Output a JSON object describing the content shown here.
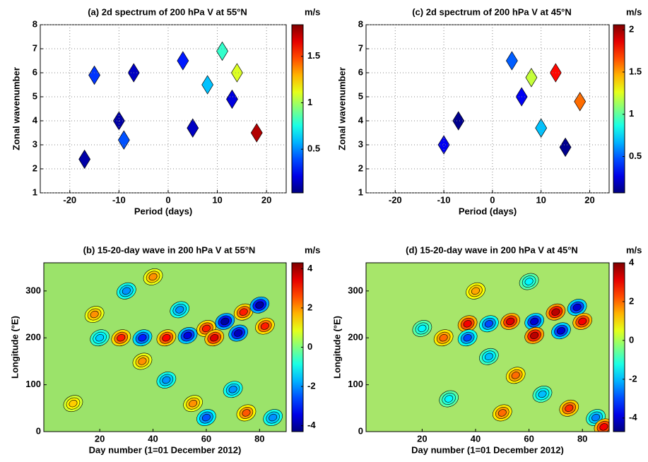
{
  "chart_data": [
    {
      "type": "contour",
      "title": "(a) 2d spectrum of 200 hPa V at 55°N",
      "xlabel": "Period (days)",
      "ylabel": "Zonal wavenumber",
      "colorbar_label": "m/s",
      "xlim": [
        -26,
        24
      ],
      "xticks": [
        -20,
        -10,
        0,
        10,
        20
      ],
      "ylim": [
        1,
        8
      ],
      "yticks": [
        1,
        2,
        3,
        4,
        5,
        6,
        7,
        8
      ],
      "grid": true,
      "clim": [
        0.03,
        1.84
      ],
      "cticks": [
        0.5,
        1,
        1.5
      ],
      "background": "#ffffff",
      "features": [
        {
          "x": -17,
          "y": 2.4,
          "value": 0.1
        },
        {
          "x": -9,
          "y": 3.2,
          "value": 0.4
        },
        {
          "x": -10,
          "y": 4,
          "value": 0.1
        },
        {
          "x": -15,
          "y": 5.9,
          "value": 0.35
        },
        {
          "x": -7,
          "y": 6,
          "value": 0.15
        },
        {
          "x": 18,
          "y": 3.5,
          "value": 1.75
        },
        {
          "x": 13,
          "y": 4.9,
          "value": 0.2
        },
        {
          "x": 14,
          "y": 6,
          "value": 1.1
        },
        {
          "x": 8,
          "y": 5.5,
          "value": 0.6
        },
        {
          "x": 5,
          "y": 3.7,
          "value": 0.15
        },
        {
          "x": 11,
          "y": 6.9,
          "value": 0.8
        },
        {
          "x": 3,
          "y": 6.5,
          "value": 0.3
        }
      ]
    },
    {
      "type": "contour",
      "title": "(b) 15-20-day wave in 200 hPa V at 55°N",
      "xlabel": "Day number (1=01 December 2012)",
      "ylabel": "Longitude (°E)",
      "colorbar_label": "m/s",
      "xlim": [
        -1,
        90
      ],
      "xticks": [
        20,
        40,
        60,
        80
      ],
      "ylim": [
        0,
        360
      ],
      "yticks": [
        0,
        100,
        200,
        300
      ],
      "grid": false,
      "clim": [
        -4.3,
        4.3
      ],
      "cticks": [
        -4,
        -2,
        0,
        2,
        4
      ],
      "background": "#9be36a",
      "features": [
        {
          "x": 28,
          "y": 200,
          "value": 3
        },
        {
          "x": 36,
          "y": 200,
          "value": -3
        },
        {
          "x": 45,
          "y": 200,
          "value": 3.2
        },
        {
          "x": 53,
          "y": 205,
          "value": -3.5
        },
        {
          "x": 60,
          "y": 220,
          "value": 3
        },
        {
          "x": 67,
          "y": 235,
          "value": -4
        },
        {
          "x": 74,
          "y": 255,
          "value": 3
        },
        {
          "x": 80,
          "y": 270,
          "value": -4
        },
        {
          "x": 63,
          "y": 200,
          "value": 3.5
        },
        {
          "x": 72,
          "y": 210,
          "value": -3.8
        },
        {
          "x": 82,
          "y": 225,
          "value": 3
        },
        {
          "x": 20,
          "y": 200,
          "value": -1.5
        },
        {
          "x": 36,
          "y": 150,
          "value": 2
        },
        {
          "x": 45,
          "y": 110,
          "value": -2
        },
        {
          "x": 55,
          "y": 60,
          "value": 2
        },
        {
          "x": 60,
          "y": 30,
          "value": -2.5
        },
        {
          "x": 75,
          "y": 40,
          "value": 2.5
        },
        {
          "x": 85,
          "y": 30,
          "value": -2
        },
        {
          "x": 30,
          "y": 300,
          "value": -2
        },
        {
          "x": 40,
          "y": 330,
          "value": 2
        },
        {
          "x": 18,
          "y": 250,
          "value": 2
        },
        {
          "x": 50,
          "y": 260,
          "value": -2
        },
        {
          "x": 70,
          "y": 90,
          "value": -2
        },
        {
          "x": 10,
          "y": 60,
          "value": 1.5
        }
      ]
    },
    {
      "type": "contour",
      "title": "(c) 2d spectrum of 200 hPa V at 45°N",
      "xlabel": "Period (days)",
      "ylabel": "Zonal wavenumber",
      "colorbar_label": "m/s",
      "xlim": [
        -26,
        24
      ],
      "xticks": [
        -20,
        -10,
        0,
        10,
        20
      ],
      "ylim": [
        1,
        8
      ],
      "yticks": [
        1,
        2,
        3,
        4,
        5,
        6,
        7,
        8
      ],
      "grid": true,
      "clim": [
        0.07,
        2.06
      ],
      "cticks": [
        0.5,
        1,
        1.5,
        2
      ],
      "background": "#ffffff",
      "features": [
        {
          "x": -7,
          "y": 4,
          "value": 0.1
        },
        {
          "x": -10,
          "y": 3,
          "value": 0.3
        },
        {
          "x": 13,
          "y": 6,
          "value": 1.8
        },
        {
          "x": 18,
          "y": 4.8,
          "value": 1.6
        },
        {
          "x": 8,
          "y": 5.8,
          "value": 1.2
        },
        {
          "x": 10,
          "y": 3.7,
          "value": 0.7
        },
        {
          "x": 15,
          "y": 2.9,
          "value": 0.1
        },
        {
          "x": 4,
          "y": 6.5,
          "value": 0.5
        },
        {
          "x": 6,
          "y": 5,
          "value": 0.3
        }
      ]
    },
    {
      "type": "contour",
      "title": "(d) 15-20-day wave in 200 hPa V at 45°N",
      "xlabel": "Day number (1=01 December 2012)",
      "ylabel": "Longitude (°E)",
      "colorbar_label": "m/s",
      "xlim": [
        -1,
        90
      ],
      "xticks": [
        20,
        40,
        60,
        80
      ],
      "ylim": [
        0,
        360
      ],
      "yticks": [
        0,
        100,
        200,
        300
      ],
      "grid": false,
      "clim": [
        -4.7,
        4
      ],
      "cticks": [
        -4,
        -2,
        0,
        2,
        4
      ],
      "background": "#a7e66a",
      "features": [
        {
          "x": 37,
          "y": 230,
          "value": 3
        },
        {
          "x": 45,
          "y": 230,
          "value": -3
        },
        {
          "x": 53,
          "y": 235,
          "value": 3.2
        },
        {
          "x": 62,
          "y": 235,
          "value": -4
        },
        {
          "x": 70,
          "y": 255,
          "value": 3.5
        },
        {
          "x": 78,
          "y": 265,
          "value": -4
        },
        {
          "x": 62,
          "y": 205,
          "value": 3.5
        },
        {
          "x": 72,
          "y": 215,
          "value": -4
        },
        {
          "x": 80,
          "y": 235,
          "value": 3
        },
        {
          "x": 37,
          "y": 200,
          "value": -3
        },
        {
          "x": 28,
          "y": 200,
          "value": 2
        },
        {
          "x": 20,
          "y": 220,
          "value": -1.5
        },
        {
          "x": 45,
          "y": 160,
          "value": -2
        },
        {
          "x": 55,
          "y": 120,
          "value": 2
        },
        {
          "x": 65,
          "y": 80,
          "value": -2
        },
        {
          "x": 75,
          "y": 50,
          "value": 2.5
        },
        {
          "x": 85,
          "y": 30,
          "value": -2.5
        },
        {
          "x": 40,
          "y": 300,
          "value": 1.5
        },
        {
          "x": 60,
          "y": 320,
          "value": -1.5
        },
        {
          "x": 30,
          "y": 70,
          "value": -1.5
        },
        {
          "x": 50,
          "y": 40,
          "value": 2
        },
        {
          "x": 88,
          "y": 10,
          "value": 3
        }
      ]
    }
  ]
}
